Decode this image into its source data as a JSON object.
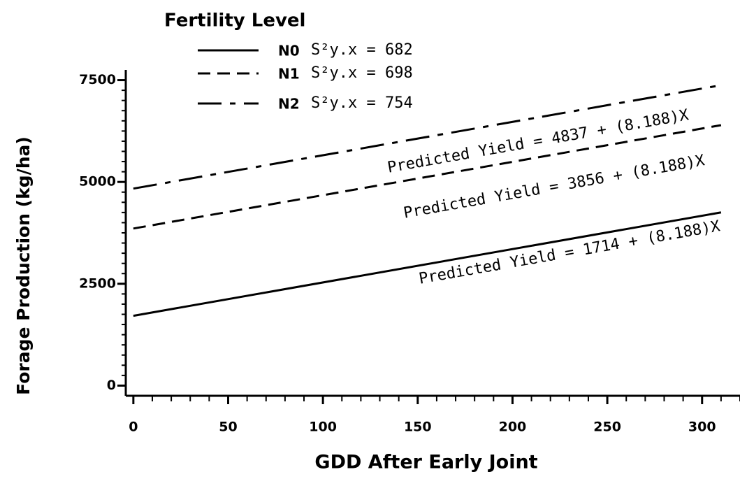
{
  "chart_data": {
    "type": "line",
    "legend_title": "Fertility Level",
    "xlabel": "GDD After Early Joint",
    "ylabel": "Forage Production (kg/ha)",
    "x": [
      0,
      310
    ],
    "series": [
      {
        "name": "N0",
        "stat": "S²y.x = 682",
        "color": "#000000",
        "dash": "solid",
        "values": [
          1714,
          4252
        ]
      },
      {
        "name": "N1",
        "stat": "S²y.x = 698",
        "color": "#000000",
        "dash": "dashed",
        "values": [
          3856,
          6394
        ]
      },
      {
        "name": "N2",
        "stat": "S²y.x = 754",
        "color": "#000000",
        "dash": "dashdot",
        "values": [
          4837,
          7375
        ]
      }
    ],
    "annotations": [
      "Predicted Yield = 4837 + (8.188)X",
      "Predicted Yield = 3856 + (8.188)X",
      "Predicted Yield = 1714 + (8.188)X"
    ],
    "xlim": [
      -4,
      320
    ],
    "ylim": [
      -250,
      7750
    ],
    "xticks": [
      0,
      50,
      100,
      150,
      200,
      250,
      300
    ],
    "yticks": [
      0,
      2500,
      5000,
      7500
    ]
  }
}
